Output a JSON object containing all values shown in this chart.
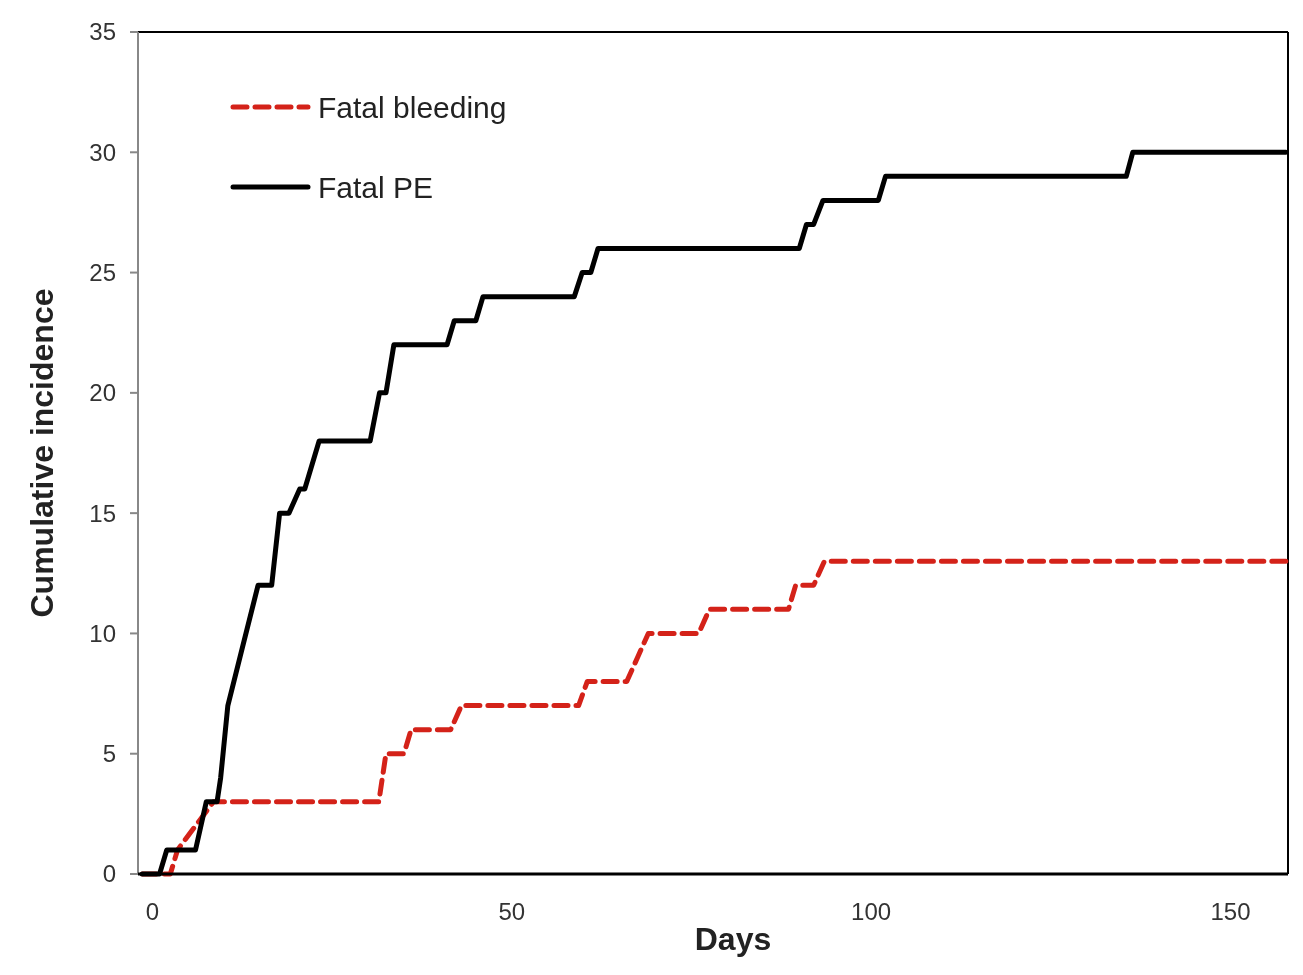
{
  "chart_data": {
    "type": "line",
    "xlabel": "Days",
    "ylabel": "Cumulative incidence",
    "xlim": [
      -2,
      158
    ],
    "xticks": [
      0,
      50,
      100,
      150
    ],
    "ylim": [
      0,
      35
    ],
    "yticks": [
      0,
      5,
      10,
      15,
      20,
      25,
      30,
      35
    ],
    "grid": false,
    "legend": "top left",
    "marker": "none",
    "series": [
      {
        "name": "Fatal bleeding",
        "color": "#d42219",
        "line_style": "dashed",
        "x": [
          -1.4,
          2.5,
          3.5,
          8.5,
          31.5,
          32.5,
          35,
          36,
          41.5,
          43,
          59.3,
          60.5,
          66,
          67.5,
          69,
          76,
          77.5,
          88.5,
          89.5,
          92,
          93.5,
          157.7
        ],
        "values": [
          0,
          0,
          1,
          3,
          3,
          5,
          5,
          6,
          6,
          7,
          7,
          8,
          8,
          9,
          10,
          10,
          11,
          11,
          12,
          12,
          13,
          13
        ]
      },
      {
        "name": "Fatal PE",
        "color": "#000000",
        "line_style": "solid",
        "x": [
          -1.4,
          1,
          2,
          6,
          7.5,
          9,
          9.5,
          10.5,
          12.6,
          14.7,
          16.6,
          17.7,
          19,
          20.5,
          21.2,
          23.2,
          30.3,
          31.6,
          32.5,
          33.6,
          41,
          42,
          45,
          46,
          58.7,
          59.8,
          61,
          62,
          90,
          91,
          92,
          93.3,
          101,
          102,
          135.5,
          136.4,
          157.7
        ],
        "values": [
          0,
          0,
          1,
          1,
          3,
          3,
          4,
          7,
          9.5,
          12,
          12,
          15,
          15,
          16,
          16,
          18,
          18,
          20,
          20,
          22,
          22,
          23,
          23,
          24,
          24,
          25,
          25,
          26,
          26,
          27,
          27,
          28,
          28,
          29,
          29,
          30,
          30
        ]
      }
    ]
  }
}
